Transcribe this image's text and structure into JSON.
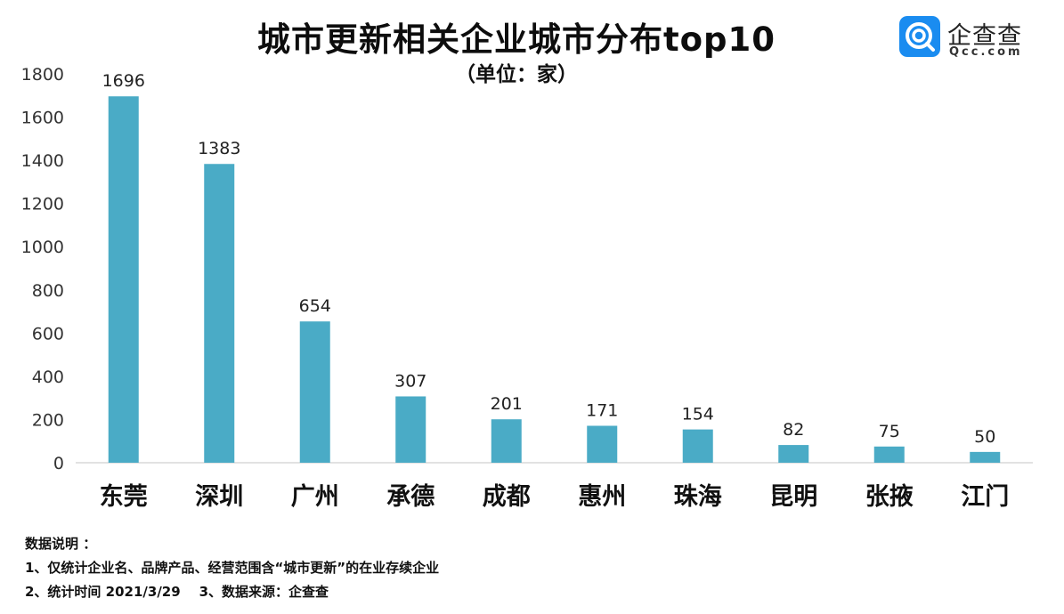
{
  "chart_data": {
    "type": "bar",
    "title": "城市更新相关企业城市分布top10",
    "subtitle": "（单位：家）",
    "categories": [
      "东莞",
      "深圳",
      "广州",
      "承德",
      "成都",
      "惠州",
      "珠海",
      "昆明",
      "张掖",
      "江门"
    ],
    "values": [
      1696,
      1383,
      654,
      307,
      201,
      171,
      154,
      82,
      75,
      50
    ],
    "y_ticks": [
      "0",
      "200",
      "400",
      "600",
      "800",
      "1000",
      "1200",
      "1400",
      "1600",
      "1800"
    ],
    "ylim": [
      0,
      1800
    ],
    "grid": false,
    "legend": "none",
    "bar_color": "#4aabc6"
  },
  "logo": {
    "name": "企查查",
    "domain": "Qcc.com",
    "color": "#1a8cf0"
  },
  "notes": {
    "heading": "数据说明 ：",
    "line1": "1、仅统计企业名、品牌产品、经营范围含“城市更新”的在业存续企业",
    "line2": "2、统计时间 2021/3/29    3、数据来源：企查查"
  }
}
